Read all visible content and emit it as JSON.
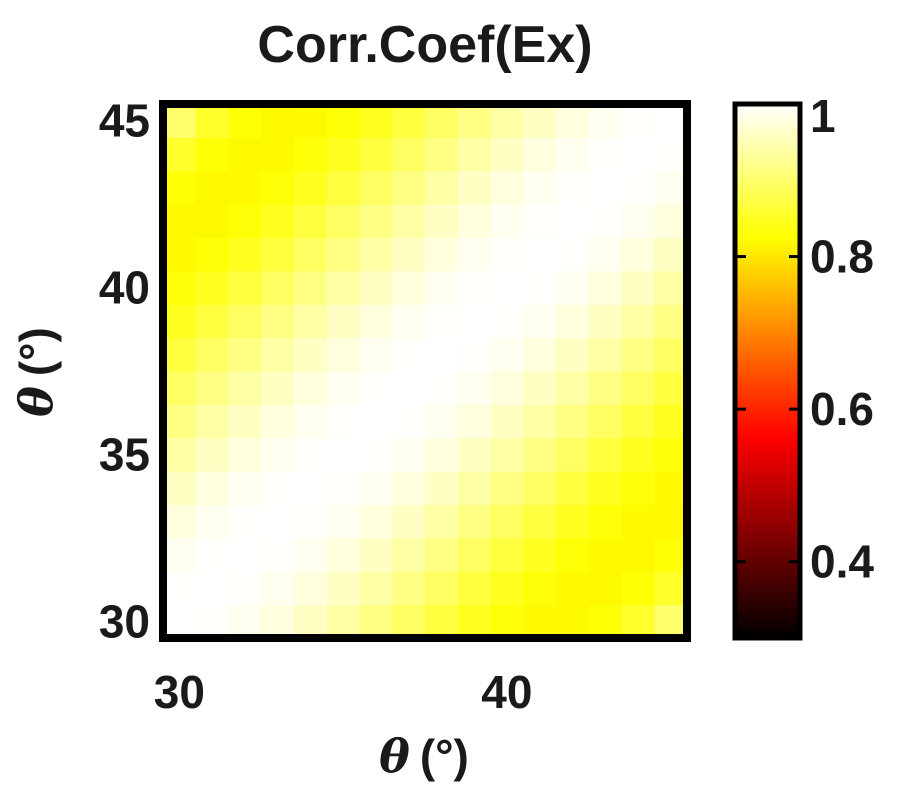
{
  "chart_data": {
    "type": "heatmap",
    "title": "Corr.Coef(Ex)",
    "xlabel": {
      "symbol": "θ",
      "unit": "(°)"
    },
    "ylabel": {
      "symbol": "θ",
      "unit": "(°)"
    },
    "xlim": [
      29.5,
      45.5
    ],
    "ylim": [
      29.5,
      45.5
    ],
    "x_ticks": [
      30,
      40
    ],
    "y_ticks": [
      30,
      35,
      40,
      45
    ],
    "x": [
      30,
      31,
      32,
      33,
      34,
      35,
      36,
      37,
      38,
      39,
      40,
      41,
      42,
      43,
      44,
      45
    ],
    "y": [
      30,
      31,
      32,
      33,
      34,
      35,
      36,
      37,
      38,
      39,
      40,
      41,
      42,
      43,
      44,
      45
    ],
    "value_model": "c = 1 - 0.0027*|x-y|^2 + 0.00001*|x-y|^4 (symmetric correlation matrix, 1 on diagonal)",
    "colormap": "hot",
    "clim": [
      0.3,
      1
    ],
    "colorbar_ticks": [
      "0.4",
      "0.6",
      "0.8",
      "1"
    ],
    "colorbar_tick_values": [
      0.4,
      0.6,
      0.8,
      1.0
    ],
    "colors": {
      "text": "#1a1a1a",
      "frame": "#000000",
      "background": "#ffffff"
    }
  }
}
